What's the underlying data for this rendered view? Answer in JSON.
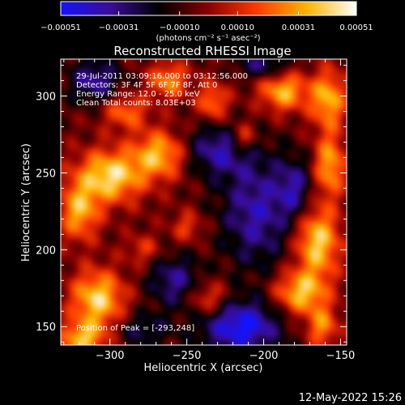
{
  "chart_data": {
    "type": "heatmap",
    "title": "Reconstructed RHESSI Image",
    "xlabel": "Heliocentric X (arcsec)",
    "ylabel": "Heliocentric Y (arcsec)",
    "xlim": [
      -332,
      -146
    ],
    "ylim": [
      138,
      324
    ],
    "x_ticks": [
      -300,
      -250,
      -200,
      -150
    ],
    "x_tick_labels": [
      "−300",
      "−250",
      "−200",
      "−150"
    ],
    "y_ticks": [
      150,
      200,
      250,
      300
    ],
    "y_tick_labels": [
      "150",
      "200",
      "250",
      "300"
    ],
    "colorbar": {
      "min": -0.00051,
      "max": 0.00051,
      "ticks": [
        -0.00051,
        -0.00031,
        -0.0001,
        0.0001,
        0.00031,
        0.00051
      ],
      "tick_labels": [
        "−0.00051",
        "−0.00031",
        "−0.00010",
        "0.00010",
        "0.00031",
        "0.00051"
      ],
      "unit_label": "(photons cm⁻² s⁻¹ asec⁻²)",
      "colors": [
        "#1414ff",
        "#3a0d96",
        "#000000",
        "#8a0000",
        "#ff3c00",
        "#ffb400",
        "#ffffff"
      ]
    },
    "annotations": {
      "time_range": "29-Jul-2011 03:09:16.000 to 03:12:56.000",
      "detectors": "Detectors: 3F 4F 5F 6F 7F 8F, Att 0",
      "energy": "Energy Range: 12.0 - 25.0 keV",
      "clean": "Clean     Total counts: 8.03E+03",
      "peak": "Position of Peak = [-293,248]"
    },
    "grid": false,
    "legend": "none",
    "hotspots": [
      {
        "x": -300,
        "y": 248,
        "amp": 0.00048,
        "sx": 15,
        "sy": 12
      },
      {
        "x": -268,
        "y": 262,
        "amp": 0.0004,
        "sx": 12,
        "sy": 11
      },
      {
        "x": -320,
        "y": 225,
        "amp": 0.00038,
        "sx": 9,
        "sy": 13
      },
      {
        "x": -290,
        "y": 290,
        "amp": 0.00028,
        "sx": 10,
        "sy": 8
      },
      {
        "x": -308,
        "y": 168,
        "amp": 0.00046,
        "sx": 12,
        "sy": 13
      },
      {
        "x": -318,
        "y": 142,
        "amp": 0.0004,
        "sx": 10,
        "sy": 8
      },
      {
        "x": -262,
        "y": 310,
        "amp": 0.00033,
        "sx": 9,
        "sy": 8
      },
      {
        "x": -233,
        "y": 296,
        "amp": 0.0003,
        "sx": 7,
        "sy": 9
      },
      {
        "x": -213,
        "y": 273,
        "amp": 0.00028,
        "sx": 6,
        "sy": 7
      },
      {
        "x": -187,
        "y": 303,
        "amp": 0.0004,
        "sx": 11,
        "sy": 9
      },
      {
        "x": -158,
        "y": 298,
        "amp": 0.0004,
        "sx": 8,
        "sy": 13
      },
      {
        "x": -157,
        "y": 255,
        "amp": 0.00038,
        "sx": 7,
        "sy": 14
      },
      {
        "x": -165,
        "y": 205,
        "amp": 0.00046,
        "sx": 10,
        "sy": 16
      },
      {
        "x": -176,
        "y": 172,
        "amp": 0.00042,
        "sx": 12,
        "sy": 10
      },
      {
        "x": -162,
        "y": 150,
        "amp": 0.00032,
        "sx": 7,
        "sy": 9
      },
      {
        "x": -236,
        "y": 168,
        "amp": 0.00026,
        "sx": 9,
        "sy": 8
      },
      {
        "x": -250,
        "y": 215,
        "amp": 0.0002,
        "sx": 7,
        "sy": 7
      },
      {
        "x": -278,
        "y": 200,
        "amp": 0.00018,
        "sx": 8,
        "sy": 7
      },
      {
        "x": -205,
        "y": 225,
        "amp": -0.00032,
        "sx": 16,
        "sy": 26
      },
      {
        "x": -230,
        "y": 265,
        "amp": -0.0003,
        "sx": 15,
        "sy": 12
      },
      {
        "x": -215,
        "y": 150,
        "amp": -0.00046,
        "sx": 18,
        "sy": 12
      },
      {
        "x": -258,
        "y": 180,
        "amp": -0.00028,
        "sx": 12,
        "sy": 12
      },
      {
        "x": -310,
        "y": 310,
        "amp": -0.0003,
        "sx": 12,
        "sy": 10
      },
      {
        "x": -200,
        "y": 320,
        "amp": -0.00026,
        "sx": 12,
        "sy": 6
      },
      {
        "x": -180,
        "y": 240,
        "amp": -0.00026,
        "sx": 8,
        "sy": 14
      },
      {
        "x": -278,
        "y": 148,
        "amp": -0.0002,
        "sx": 12,
        "sy": 8
      }
    ]
  },
  "footer": {
    "datetime": "12-May-2022 15:26"
  }
}
